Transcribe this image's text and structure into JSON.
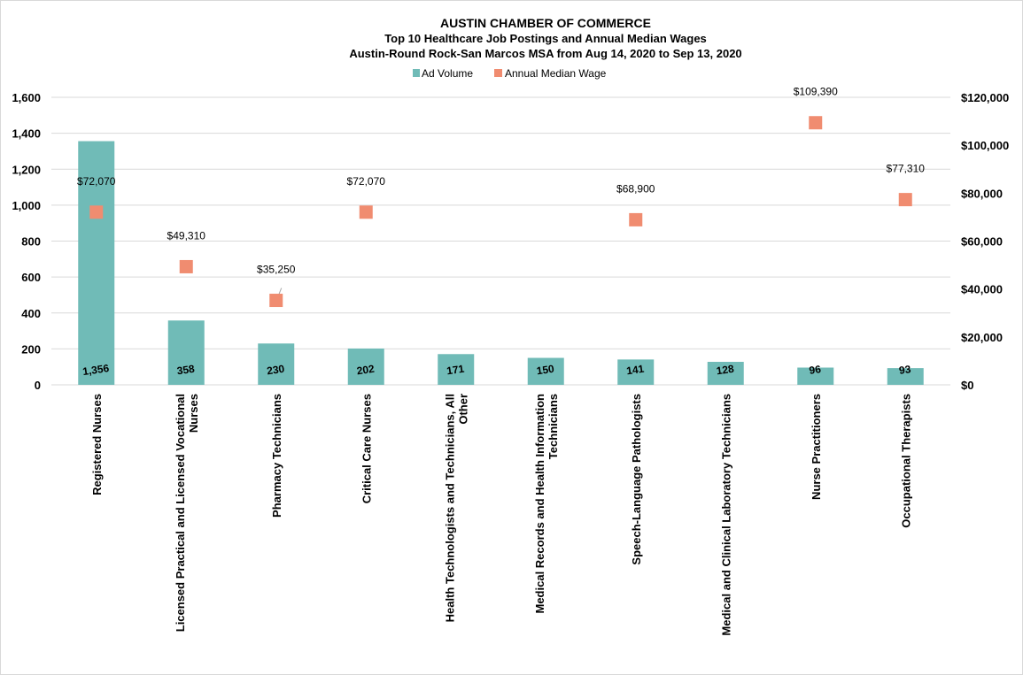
{
  "chart_data": {
    "type": "bar",
    "title": "AUSTIN CHAMBER OF COMMERCE",
    "subtitle_lines": [
      "Top 10 Healthcare Job Postings and Annual  Median Wages",
      "Austin-Round Rock-San Marcos MSA from Aug 14, 2020 to Sep 13, 2020"
    ],
    "legend_position": "top-center",
    "grid": true,
    "categories": [
      [
        "Registered Nurses"
      ],
      [
        "Licensed Practical and Licensed Vocational",
        "Nurses"
      ],
      [
        "Pharmacy Technicians"
      ],
      [
        "Critical Care Nurses"
      ],
      [
        "Health Technologists and Technicians, All",
        "Other"
      ],
      [
        "Medical Records and Health Information",
        "Technicians"
      ],
      [
        "Speech-Language Pathologists"
      ],
      [
        "Medical and Clinical Laboratory Technicians"
      ],
      [
        "Nurse Practitioners"
      ],
      [
        "Occupational Therapists"
      ]
    ],
    "series": [
      {
        "name": "Ad Volume",
        "kind": "bar",
        "axis": "left",
        "color": "#70bbb7",
        "values": [
          1356,
          358,
          230,
          202,
          171,
          150,
          141,
          128,
          96,
          93
        ],
        "labels": [
          "1,356",
          "358",
          "230",
          "202",
          "171",
          "150",
          "141",
          "128",
          "96",
          "93"
        ]
      },
      {
        "name": "Annual Median Wage",
        "kind": "marker",
        "axis": "right",
        "color": "#f08c70",
        "values": [
          72070,
          49310,
          35250,
          72070,
          null,
          null,
          68900,
          null,
          109390,
          77310
        ],
        "labels": [
          "$72,070",
          "$49,310",
          "$35,250",
          "$72,070",
          "",
          "",
          "$68,900",
          "",
          "$109,390",
          "$77,310"
        ]
      }
    ],
    "y_left": {
      "min": 0,
      "max": 1600,
      "ticks": [
        0,
        200,
        400,
        600,
        800,
        1000,
        1200,
        1400,
        1600
      ],
      "tick_labels": [
        "0",
        "200",
        "400",
        "600",
        "800",
        "1,000",
        "1,200",
        "1,400",
        "1,600"
      ]
    },
    "y_right": {
      "min": 0,
      "max": 120000,
      "ticks": [
        0,
        20000,
        40000,
        60000,
        80000,
        100000,
        120000
      ],
      "tick_labels": [
        "$0",
        "$20,000",
        "$40,000",
        "$60,000",
        "$80,000",
        "$100,000",
        "$120,000"
      ]
    }
  }
}
